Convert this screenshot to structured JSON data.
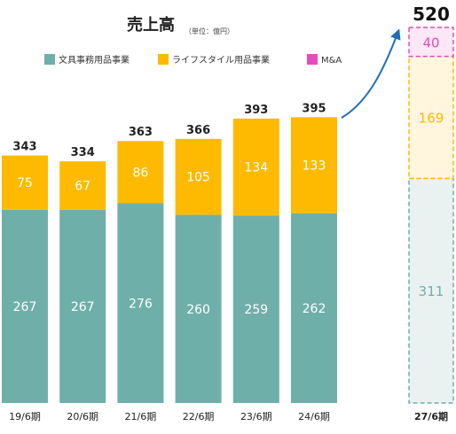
{
  "chart_data": {
    "type": "bar",
    "stacked": true,
    "title": "売上高",
    "unit_note": "（単位：億円）",
    "xlabel": "",
    "ylabel": "",
    "grid": false,
    "legend_position": "top",
    "categories": [
      "19/6期",
      "20/6期",
      "21/6期",
      "22/6期",
      "23/6期",
      "24/6期"
    ],
    "series": [
      {
        "name": "文具事務用品事業",
        "color": "#6FAFAA",
        "values": [
          267,
          267,
          276,
          260,
          259,
          262
        ]
      },
      {
        "name": "ライフスタイル用品事業",
        "color": "#FDBA00",
        "values": [
          75,
          67,
          86,
          105,
          134,
          133
        ]
      },
      {
        "name": "M&A",
        "color": "#E64BBE",
        "values": [
          0,
          0,
          0,
          0,
          0,
          0
        ]
      }
    ],
    "totals": [
      "343",
      "334",
      "363",
      "366",
      "393",
      "395"
    ],
    "target": {
      "category": "27/6期",
      "total": "520",
      "values": [
        311,
        169,
        40
      ],
      "labels": [
        "311",
        "169",
        "40"
      ],
      "fills": [
        "#E9F2F1",
        "#FFF6DD",
        "#FCE7F6"
      ],
      "borders": [
        "#6FAFAA",
        "#FDBA00",
        "#E64BBE"
      ]
    },
    "arrow_color": "#1F6FB6"
  }
}
